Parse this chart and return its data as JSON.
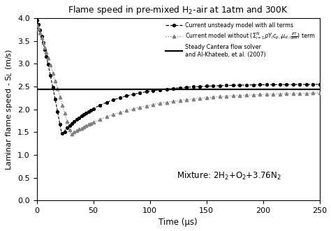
{
  "title": "Flame speed in pre-mixed H$_2$-air at 1atm and 300K",
  "xlabel": "Time (μs)",
  "ylabel": "Laminar flame speed - S$_L$ (m/s)",
  "xlim": [
    0,
    250
  ],
  "ylim": [
    0,
    4
  ],
  "yticks": [
    0,
    0.5,
    1.0,
    1.5,
    2.0,
    2.5,
    3.0,
    3.5,
    4.0
  ],
  "xticks": [
    0,
    50,
    100,
    150,
    200,
    250
  ],
  "steady_value": 2.43,
  "mixture_label": "Mixture: 2H$_2$+O$_2$+3.76N$_2$",
  "mixture_pos_x": 170,
  "mixture_pos_y": 0.42,
  "figsize": [
    4.74,
    3.31
  ],
  "dpi": 100,
  "curve1_start": 3.95,
  "curve1_min_val": 1.47,
  "curve1_min_t": 22,
  "curve1_settle": 2.55,
  "curve2_start": 3.85,
  "curve2_min_val": 1.45,
  "curve2_min_t": 30,
  "curve2_settle": 2.38
}
